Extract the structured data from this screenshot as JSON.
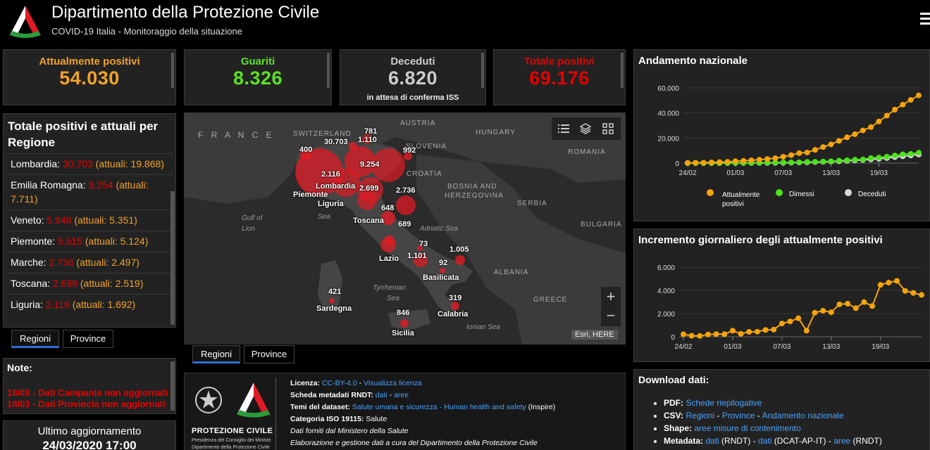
{
  "header": {
    "title": "Dipartimento della Protezione Civile",
    "subtitle": "COVID-19 Italia - Monitoraggio della situazione"
  },
  "kpis": {
    "attualmente": {
      "label": "Attualmente positivi",
      "value": "54.030"
    },
    "guariti": {
      "label": "Guariti",
      "value": "8.326"
    },
    "deceduti": {
      "label": "Deceduti",
      "value": "6.820",
      "note": "in attesa di conferma ISS"
    },
    "totale": {
      "label": "Totale positivi",
      "value": "69.176"
    }
  },
  "regions_panel": {
    "title": "Totale positivi e attuali per Regione",
    "items": [
      {
        "name": "Lombardia:",
        "total": "30.703",
        "attuali": "(attuali: 19.868)"
      },
      {
        "name": "Emilia Romagna:",
        "total": "9.254",
        "attuali": "(attuali: 7.711)"
      },
      {
        "name": "Veneto:",
        "total": "5.948",
        "attuali": "(attuali: 5.351)"
      },
      {
        "name": "Piemonte:",
        "total": "5.515",
        "attuali": "(attuali: 5.124)"
      },
      {
        "name": "Marche:",
        "total": "2.736",
        "attuali": "(attuali: 2.497)"
      },
      {
        "name": "Toscana:",
        "total": "2.699",
        "attuali": "(attuali: 2.519)"
      },
      {
        "name": "Liguria:",
        "total": "2.116",
        "attuali": "(attuali: 1.692)"
      }
    ],
    "tabs": [
      "Regioni",
      "Province"
    ]
  },
  "notes": {
    "title": "Note:",
    "line1": "18/03 - Dati Campania non aggiornati",
    "line2": "18/03 - Dati Provincia non aggiornati"
  },
  "update": {
    "label": "Ultimo aggiornamento",
    "value": "24/03/2020 17:00"
  },
  "map": {
    "countries": {
      "france": "F R A N C E",
      "switzerland": "SWITZERLAND",
      "austria": "AUSTRIA",
      "hungary": "HUNGARY",
      "slovenia": "SLOVENIA",
      "croatia": "CROATIA",
      "romania": "ROMANIA",
      "bosnia1": "BOSNIA AND",
      "bosnia2": "HERZEGOVINA",
      "serbia": "SERBIA",
      "bulgaria": "BULGARIA",
      "albania": "ALBANIA",
      "greece": "GREECE"
    },
    "seas": {
      "lion1": "Gulf of",
      "lion2": "Lion",
      "ligurian": "Sea",
      "adriatic": "Adriatic Sea",
      "tyrrhenian1": "Tyrrhenian",
      "tyrrhenian2": "Sea",
      "ionian": "Ionian Sea"
    },
    "counts": {
      "c781": "781",
      "c30703": "30.703",
      "c1110": "1.110",
      "c400": "400",
      "c992": "992",
      "c9254": "9.254",
      "c2116": "2.116",
      "c2699": "2.699",
      "c2736": "2.736",
      "c648": "648",
      "c689": "689",
      "c73": "73",
      "c1005": "1.005",
      "c1101": "1.101",
      "c92": "92",
      "c421": "421",
      "c319": "319",
      "c846": "846"
    },
    "regions": {
      "lombardia": "Lombardia",
      "piemonte": "Piemonte",
      "liguria": "Liguria",
      "toscana": "Toscana",
      "lazio": "Lazio",
      "basilicata": "Basilicata",
      "sardegna": "Sardegna",
      "calabria": "Calabria",
      "sicilia": "Sicilia"
    },
    "attribution": "Esri, HERE",
    "zoom_in": "+",
    "zoom_out": "−",
    "tabs": [
      "Regioni",
      "Province"
    ]
  },
  "license": {
    "l1_label": "Licenza:",
    "l1_link1": "CC-BY-4.0",
    "l1_sep": " - ",
    "l1_link2": "Visualizza licenza",
    "l2_label": "Scheda metadati RNDT:",
    "l2_link1": "dati",
    "l2_sep": " - ",
    "l2_link2": "aree",
    "l3_label": "Temi del dataset:",
    "l3_link": "Salute umana e sicurezza - Human health and safety",
    "l3_suffix": " (Inspire)",
    "l4_label": "Categoria ISO 19115:",
    "l4_value": " Salute",
    "l5": "Dati forniti dal Ministero della Salute",
    "l6": "Elaborazione e gestione dati a cura del Dipartimento della Protezione Civile",
    "logo_title": "PROTEZIONE CIVILE",
    "logo_sub1": "Presidenza del Consiglio dei Ministri",
    "logo_sub2": "Dipartimento della Protezione Civile"
  },
  "chart1": {
    "title": "Andamento nazionale"
  },
  "chart2": {
    "title": "Incremento giornaliero degli attualmente positivi"
  },
  "downloads": {
    "title": "Download dati:",
    "pdf_label": "PDF:",
    "pdf_link": "Schede riepilogative",
    "csv_label": "CSV:",
    "csv_l1": "Regioni",
    "csv_l2": "Province",
    "csv_l3": "Andamento nazionale",
    "sep": " - ",
    "shape_label": "Shape:",
    "shape_link": "aree misure di contenimento",
    "meta_label": "Metadata:",
    "meta_l1": "dati",
    "meta_t1": " (RNDT) - ",
    "meta_l2": "dati",
    "meta_t2": " (DCAT-AP-IT) - ",
    "meta_l3": "aree",
    "meta_t3": " (RNDT)"
  },
  "colors": {
    "attualmente": "#f5a40b",
    "dimessi": "#4ee21a",
    "deceduti": "#d9d9d9",
    "accent": "#2f6fd6"
  },
  "chart_data": [
    {
      "type": "line",
      "title": "Andamento nazionale",
      "x": [
        "24/02",
        "25/02",
        "26/02",
        "27/02",
        "28/02",
        "29/02",
        "01/03",
        "02/03",
        "03/03",
        "04/03",
        "05/03",
        "06/03",
        "07/03",
        "08/03",
        "09/03",
        "10/03",
        "11/03",
        "12/03",
        "13/03",
        "14/03",
        "15/03",
        "16/03",
        "17/03",
        "18/03",
        "19/03",
        "20/03",
        "21/03",
        "22/03",
        "23/03",
        "24/03"
      ],
      "xticks": [
        "24/02",
        "01/03",
        "07/03",
        "13/03",
        "19/03"
      ],
      "ylim": [
        0,
        60000
      ],
      "yticks": [
        "0",
        "20.000",
        "40.000",
        "60.000"
      ],
      "series": [
        {
          "name": "Attualmente positivi",
          "color": "#f5a40b",
          "values": [
            221,
            311,
            385,
            588,
            821,
            1049,
            1577,
            1835,
            2263,
            2706,
            3296,
            3916,
            5061,
            6387,
            7985,
            8514,
            10590,
            12839,
            14955,
            17750,
            20603,
            23073,
            26062,
            28710,
            33190,
            37860,
            42681,
            46638,
            50418,
            54030
          ]
        },
        {
          "name": "Dimessi",
          "color": "#4ee21a",
          "values": [
            1,
            1,
            3,
            45,
            46,
            50,
            83,
            149,
            160,
            276,
            414,
            523,
            589,
            622,
            724,
            1004,
            1045,
            1258,
            1439,
            1966,
            2335,
            2749,
            2941,
            4025,
            4440,
            5129,
            6072,
            7024,
            7432,
            8326
          ]
        },
        {
          "name": "Deceduti",
          "color": "#d9d9d9",
          "values": [
            7,
            10,
            12,
            17,
            21,
            29,
            34,
            52,
            79,
            107,
            148,
            197,
            233,
            366,
            463,
            631,
            827,
            1016,
            1266,
            1441,
            1809,
            2158,
            2503,
            2978,
            3405,
            4032,
            4825,
            5476,
            6077,
            6820
          ]
        }
      ],
      "legend": [
        "Attualmente positivi",
        "Dimessi",
        "Deceduti"
      ],
      "legend_position": "bottom"
    },
    {
      "type": "line",
      "title": "Incremento giornaliero degli attualmente positivi",
      "x": [
        "24/02",
        "25/02",
        "26/02",
        "27/02",
        "28/02",
        "29/02",
        "01/03",
        "02/03",
        "03/03",
        "04/03",
        "05/03",
        "06/03",
        "07/03",
        "08/03",
        "09/03",
        "10/03",
        "11/03",
        "12/03",
        "13/03",
        "14/03",
        "15/03",
        "16/03",
        "17/03",
        "18/03",
        "19/03",
        "20/03",
        "21/03",
        "22/03",
        "23/03",
        "24/03"
      ],
      "xticks": [
        "24/02",
        "01/03",
        "07/03",
        "13/03",
        "19/03"
      ],
      "ylim": [
        0,
        6000
      ],
      "yticks": [
        "0",
        "2.000",
        "4.000",
        "6.000"
      ],
      "series": [
        {
          "name": "Incremento",
          "color": "#f5a40b",
          "values": [
            221,
            90,
            74,
            203,
            233,
            228,
            528,
            258,
            428,
            443,
            590,
            620,
            1145,
            1326,
            1598,
            529,
            2076,
            2249,
            2116,
            2795,
            2853,
            2470,
            2989,
            2648,
            4480,
            4670,
            4821,
            3957,
            3780,
            3612
          ]
        }
      ]
    }
  ]
}
